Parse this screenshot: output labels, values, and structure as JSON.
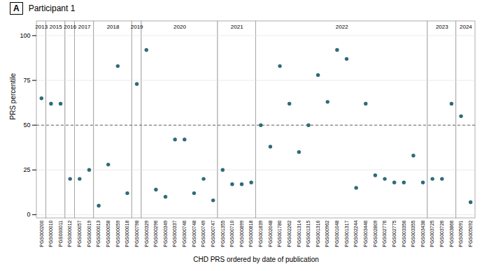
{
  "chart_data": {
    "type": "scatter",
    "title": "Participant 1",
    "panel_label": "A",
    "xlabel": "CHD PRS ordered by date of publication",
    "ylabel": "PRS percentile",
    "categories": [
      "PGS000200",
      "PGS000010",
      "PGS000011",
      "PGS000012",
      "PGS000057",
      "PGS000019",
      "PGS000013",
      "PGS000058",
      "PGS000059",
      "PGS000018",
      "PGS000798",
      "PGS000329",
      "PGS000296",
      "PGS000349",
      "PGS000337",
      "PGS000746",
      "PGS000748",
      "PGS000749",
      "PGS000747",
      "PGS001355",
      "PGS000710",
      "PGS000899",
      "PGS000818",
      "PGS001839",
      "PGS002048",
      "PGS001780",
      "PGS002262",
      "PGS001314",
      "PGS001315",
      "PGS001316",
      "PGS000962",
      "PGS001048",
      "PGS001317",
      "PGS002244",
      "PGS003446",
      "PGS002809",
      "PGS002776",
      "PGS002775",
      "PGS003356",
      "PGS003355",
      "PGS003438",
      "PGS003725",
      "PGS003726",
      "PGS003866",
      "PGS005091",
      "PGS005092"
    ],
    "groups": [
      "2013",
      "2015",
      "2015",
      "2016",
      "2017",
      "2017",
      "2018",
      "2018",
      "2018",
      "2018",
      "2019",
      "2020",
      "2020",
      "2020",
      "2020",
      "2020",
      "2020",
      "2020",
      "2020",
      "2021",
      "2021",
      "2021",
      "2021",
      "2022",
      "2022",
      "2022",
      "2022",
      "2022",
      "2022",
      "2022",
      "2022",
      "2022",
      "2022",
      "2022",
      "2022",
      "2022",
      "2022",
      "2022",
      "2022",
      "2022",
      "2022",
      "2023",
      "2023",
      "2023",
      "2024",
      "2024"
    ],
    "values": [
      65,
      62,
      62,
      20,
      20,
      25,
      5,
      28,
      83,
      12,
      73,
      92,
      14,
      10,
      42,
      42,
      12,
      20,
      8,
      25,
      17,
      17,
      18,
      50,
      38,
      83,
      62,
      35,
      50,
      78,
      63,
      92,
      87,
      15,
      62,
      22,
      20,
      18,
      18,
      33,
      18,
      20,
      20,
      62,
      55,
      7
    ],
    "color": "#2e6b7a",
    "reference_lines": [
      {
        "y": 50,
        "line_style": "dashed"
      }
    ],
    "ylim": [
      -2,
      108
    ],
    "yticks": [
      0,
      25,
      50,
      75,
      100
    ],
    "grid": true
  }
}
